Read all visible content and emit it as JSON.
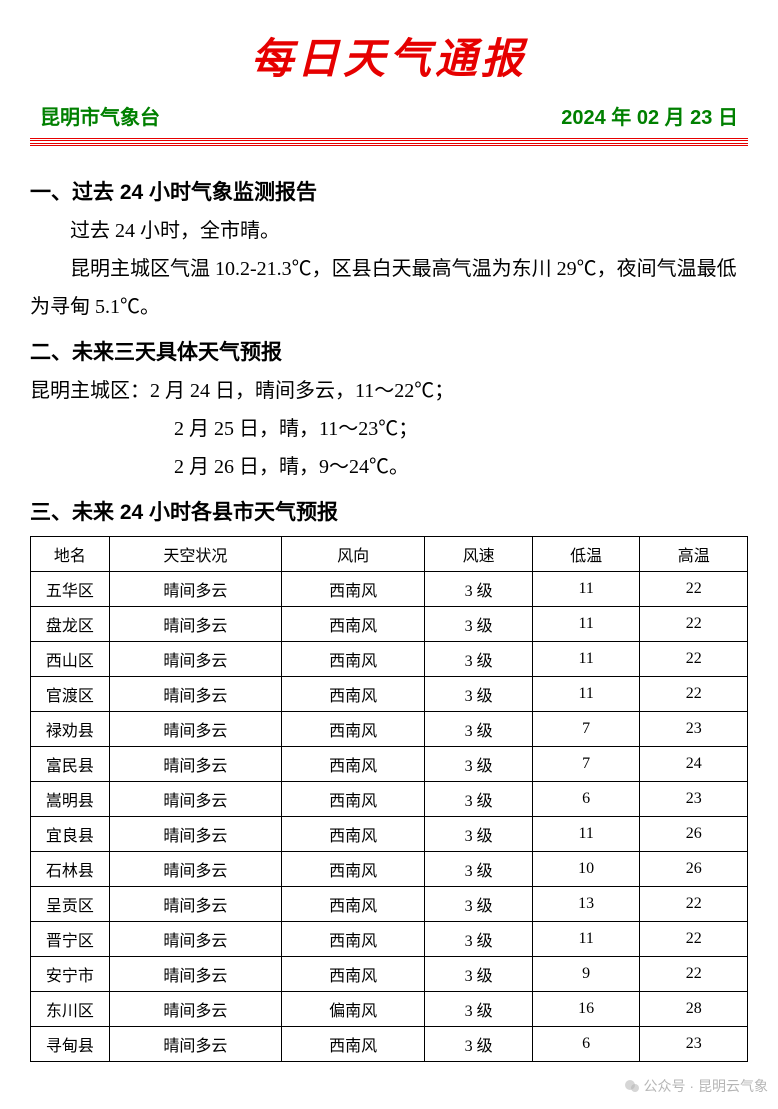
{
  "title": "每日天气通报",
  "issuer": "昆明市气象台",
  "date": "2024 年 02 月 23 日",
  "sections": {
    "s1": {
      "heading": "一、过去 24 小时气象监测报告",
      "p1": "过去 24 小时，全市晴。",
      "p2": "昆明主城区气温 10.2-21.3℃，区县白天最高气温为东川 29℃，夜间气温最低为寻甸 5.1℃。"
    },
    "s2": {
      "heading": "二、未来三天具体天气预报",
      "line1": "昆明主城区：2 月 24 日，晴间多云，11～22℃；",
      "line2": "2 月 25 日，晴，11～23℃；",
      "line3": "2 月 26 日，晴，9～24℃。"
    },
    "s3": {
      "heading": "三、未来 24 小时各县市天气预报"
    }
  },
  "table": {
    "columns": [
      "地名",
      "天空状况",
      "风向",
      "风速",
      "低温",
      "高温"
    ],
    "rows": [
      [
        "五华区",
        "晴间多云",
        "西南风",
        "3 级",
        "11",
        "22"
      ],
      [
        "盘龙区",
        "晴间多云",
        "西南风",
        "3 级",
        "11",
        "22"
      ],
      [
        "西山区",
        "晴间多云",
        "西南风",
        "3 级",
        "11",
        "22"
      ],
      [
        "官渡区",
        "晴间多云",
        "西南风",
        "3 级",
        "11",
        "22"
      ],
      [
        "禄劝县",
        "晴间多云",
        "西南风",
        "3 级",
        "7",
        "23"
      ],
      [
        "富民县",
        "晴间多云",
        "西南风",
        "3 级",
        "7",
        "24"
      ],
      [
        "嵩明县",
        "晴间多云",
        "西南风",
        "3 级",
        "6",
        "23"
      ],
      [
        "宜良县",
        "晴间多云",
        "西南风",
        "3 级",
        "11",
        "26"
      ],
      [
        "石林县",
        "晴间多云",
        "西南风",
        "3 级",
        "10",
        "26"
      ],
      [
        "呈贡区",
        "晴间多云",
        "西南风",
        "3 级",
        "13",
        "22"
      ],
      [
        "晋宁区",
        "晴间多云",
        "西南风",
        "3 级",
        "11",
        "22"
      ],
      [
        "安宁市",
        "晴间多云",
        "西南风",
        "3 级",
        "9",
        "22"
      ],
      [
        "东川区",
        "晴间多云",
        "偏南风",
        "3 级",
        "16",
        "28"
      ],
      [
        "寻甸县",
        "晴间多云",
        "西南风",
        "3 级",
        "6",
        "23"
      ]
    ],
    "col_widths_pct": [
      11,
      24,
      20,
      15,
      15,
      15
    ]
  },
  "watermark": "公众号 · 昆明云气象",
  "colors": {
    "title_red": "#e60000",
    "header_green": "#008000",
    "text": "#000000",
    "border": "#000000",
    "background": "#ffffff"
  },
  "fonts": {
    "title": {
      "family": "STXingkai/华文行楷",
      "size_pt": 42,
      "style": "italic-bold"
    },
    "subhead": {
      "family": "SimHei",
      "size_pt": 20,
      "weight": "bold"
    },
    "section_heading": {
      "family": "SimHei",
      "size_pt": 21,
      "weight": "bold"
    },
    "body": {
      "family": "SimSun",
      "size_pt": 20
    },
    "table": {
      "family": "SimSun",
      "size_pt": 16
    }
  }
}
